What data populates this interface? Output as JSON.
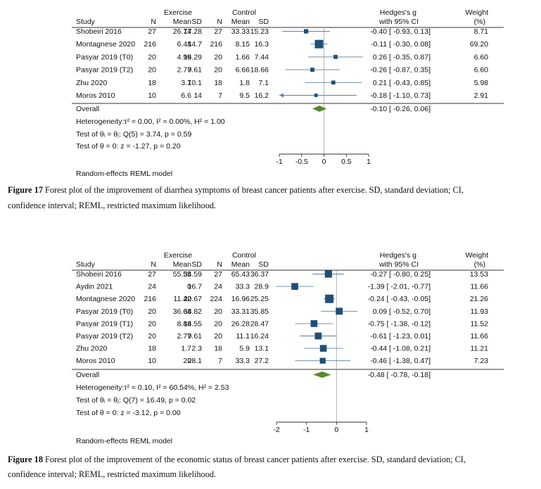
{
  "chart_data": [
    {
      "type": "forest",
      "headers": {
        "group1": "Exercise",
        "group2": "Control",
        "study": "Study",
        "n1": "N",
        "mean1": "Mean",
        "sd1": "SD",
        "n2": "N",
        "mean2": "Mean",
        "sd2": "SD",
        "effect_line1": "Hedges's g",
        "effect_line2": "with 95% CI",
        "weight_line1": "Weight",
        "weight_line2": "(%)"
      },
      "studies": [
        {
          "name": "Shobeiri 2016",
          "n1": "27",
          "mean1": "26.74",
          "sd1": "17.28",
          "n2": "27",
          "mean2": "33.33",
          "sd2": "15.23",
          "g": -0.4,
          "lo": -0.93,
          "hi": 0.13,
          "ci_text": "-0.40 [ -0.93,  0.13]",
          "weight": "8.71",
          "w": 8.71
        },
        {
          "name": "Montagnese 2020",
          "n1": "216",
          "mean1": "6.48",
          "sd1": "14.7",
          "n2": "216",
          "mean2": "8.15",
          "sd2": "16.3",
          "g": -0.11,
          "lo": -0.3,
          "hi": 0.08,
          "ci_text": "-0.11 [ -0.30,  0.08]",
          "weight": "69.20",
          "w": 69.2
        },
        {
          "name": "Pasyar 2019 (T0)",
          "n1": "20",
          "mean1": "4.99",
          "sd1": "16.29",
          "n2": "20",
          "mean2": "1.66",
          "sd2": "7.44",
          "g": 0.26,
          "lo": -0.35,
          "hi": 0.87,
          "ci_text": "0.26 [ -0.35,  0.87]",
          "weight": "6.60",
          "w": 6.6
        },
        {
          "name": "Pasyar 2019 (T2)",
          "n1": "20",
          "mean1": "2.77",
          "sd1": "9.61",
          "n2": "20",
          "mean2": "6.66",
          "sd2": "18.66",
          "g": -0.26,
          "lo": -0.87,
          "hi": 0.35,
          "ci_text": "-0.26 [ -0.87,  0.35]",
          "weight": "6.60",
          "w": 6.6
        },
        {
          "name": "Zhu 2020",
          "n1": "18",
          "mean1": "3.7",
          "sd1": "10.1",
          "n2": "18",
          "mean2": "1.8",
          "sd2": "7.1",
          "g": 0.21,
          "lo": -0.43,
          "hi": 0.85,
          "ci_text": "0.21 [ -0.43,  0.85]",
          "weight": "5.98",
          "w": 5.98
        },
        {
          "name": "Moros 2010",
          "n1": "10",
          "mean1": "6.6",
          "sd1": "14",
          "n2": "7",
          "mean2": "9.5",
          "sd2": "16.2",
          "g": -0.18,
          "lo": -1.1,
          "hi": 0.73,
          "ci_text": "-0.18 [ -1.10,  0.73]",
          "weight": "2.91",
          "w": 2.91
        }
      ],
      "overall": {
        "label": "Overall",
        "g": -0.1,
        "lo": -0.26,
        "hi": 0.06,
        "ci_text": "-0.10 [ -0.26,  0.06]"
      },
      "heterogeneity": "Heterogeneity:τ² = 0.00, I² = 0.00%, H² = 1.00",
      "test_equal": "Test of θᵢ = θⱼ: Q(5) = 3.74, p = 0.59",
      "test_zero": "Test of θ = 0: z = -1.27, p = 0.20",
      "model": "Random-effects REML model",
      "xlim": [
        -1,
        1
      ],
      "ticks": [
        -1,
        -0.5,
        0,
        0.5,
        1
      ],
      "tick_labels": [
        "-1",
        "-0.5",
        "0",
        "0.5",
        "1"
      ],
      "arrow_left": true,
      "colors": {
        "marker": "#1f4e79",
        "diamond": "#5a8a2e",
        "ci_line": "#5b7fa6"
      },
      "caption_label": "Figure 17",
      "caption_line1": "Forest plot of the improvement of diarrhea symptoms of breast cancer patients after exercise. SD, standard deviation; CI,",
      "caption_line2": "confidence interval; REML, restricted maximum likelihood."
    },
    {
      "type": "forest",
      "headers": {
        "group1": "Exercise",
        "group2": "Control",
        "study": "Study",
        "n1": "N",
        "mean1": "Mean",
        "sd1": "SD",
        "n2": "N",
        "mean2": "Mean",
        "sd2": "SD",
        "effect_line1": "Hedges's g",
        "effect_line2": "with 95% CI",
        "weight_line1": "Weight",
        "weight_line2": "(%)"
      },
      "studies": [
        {
          "name": "Shobeiri 2016",
          "n1": "27",
          "mean1": "55.55",
          "sd1": "34.59",
          "n2": "27",
          "mean2": "65.43",
          "sd2": "36.37",
          "g": -0.27,
          "lo": -0.8,
          "hi": 0.25,
          "ci_text": "-0.27 [ -0.80,  0.25]",
          "weight": "13.53",
          "w": 13.53
        },
        {
          "name": "Aydin 2021",
          "n1": "24",
          "mean1": "0",
          "sd1": "16.7",
          "n2": "24",
          "mean2": "33.3",
          "sd2": "28.9",
          "g": -1.39,
          "lo": -2.01,
          "hi": -0.77,
          "ci_text": "-1.39 [ -2.01, -0.77]",
          "weight": "11.66",
          "w": 11.66
        },
        {
          "name": "Montagnese 2020",
          "n1": "216",
          "mean1": "11.42",
          "sd1": "20.67",
          "n2": "224",
          "mean2": "16.96",
          "sd2": "25.25",
          "g": -0.24,
          "lo": -0.43,
          "hi": -0.05,
          "ci_text": "-0.24 [ -0.43, -0.05]",
          "weight": "21.26",
          "w": 21.26
        },
        {
          "name": "Pasyar 2019 (T0)",
          "n1": "20",
          "mean1": "36.64",
          "sd1": "38.82",
          "n2": "20",
          "mean2": "33.31",
          "sd2": "35.85",
          "g": 0.09,
          "lo": -0.52,
          "hi": 0.7,
          "ci_text": "0.09 [ -0.52,  0.70]",
          "weight": "11.93",
          "w": 11.93
        },
        {
          "name": "Pasyar 2019 (T1)",
          "n1": "20",
          "mean1": "8.88",
          "sd1": "14.55",
          "n2": "20",
          "mean2": "26.28",
          "sd2": "28.47",
          "g": -0.75,
          "lo": -1.38,
          "hi": -0.12,
          "ci_text": "-0.75 [ -1.38, -0.12]",
          "weight": "11.52",
          "w": 11.52
        },
        {
          "name": "Pasyar 2019 (T2)",
          "n1": "20",
          "mean1": "2.77",
          "sd1": "9.61",
          "n2": "20",
          "mean2": "11.1",
          "sd2": "16.24",
          "g": -0.61,
          "lo": -1.23,
          "hi": 0.01,
          "ci_text": "-0.61 [ -1.23,  0.01]",
          "weight": "11.66",
          "w": 11.66
        },
        {
          "name": "Zhu 2020",
          "n1": "18",
          "mean1": "1.7",
          "sd1": "2.3",
          "n2": "18",
          "mean2": "5.9",
          "sd2": "13.1",
          "g": -0.44,
          "lo": -1.08,
          "hi": 0.21,
          "ci_text": "-0.44 [ -1.08,  0.21]",
          "weight": "11.21",
          "w": 11.21
        },
        {
          "name": "Moros 2010",
          "n1": "10",
          "mean1": "20",
          "sd1": "28.1",
          "n2": "7",
          "mean2": "33.3",
          "sd2": "27.2",
          "g": -0.46,
          "lo": -1.38,
          "hi": 0.47,
          "ci_text": "-0.46 [ -1.38,  0.47]",
          "weight": "7.23",
          "w": 7.23
        }
      ],
      "overall": {
        "label": "Overall",
        "g": -0.48,
        "lo": -0.78,
        "hi": -0.18,
        "ci_text": "-0.48 [ -0.78, -0.18]"
      },
      "heterogeneity": "Heterogeneity:τ² = 0.10, I² = 60.54%, H² = 2.53",
      "test_equal": "Test of θᵢ = θⱼ: Q(7) = 16.49, p = 0.02",
      "test_zero": "Test of θ = 0: z = -3.12, p = 0.00",
      "model": "Random-effects REML model",
      "xlim": [
        -2,
        1
      ],
      "ticks": [
        -2,
        -1,
        0,
        1
      ],
      "tick_labels": [
        "-2",
        "-1",
        "0",
        "1"
      ],
      "arrow_left": false,
      "colors": {
        "marker": "#1f4e79",
        "diamond": "#5a8a2e",
        "ci_line": "#5b7fa6"
      },
      "caption_label": "Figure 18",
      "caption_line1": "Forest plot of the improvement of the economic status of breast cancer patients after exercise. SD, standard deviation; CI,",
      "caption_line2": "confidence interval; REML, restricted maximum likelihood."
    }
  ]
}
